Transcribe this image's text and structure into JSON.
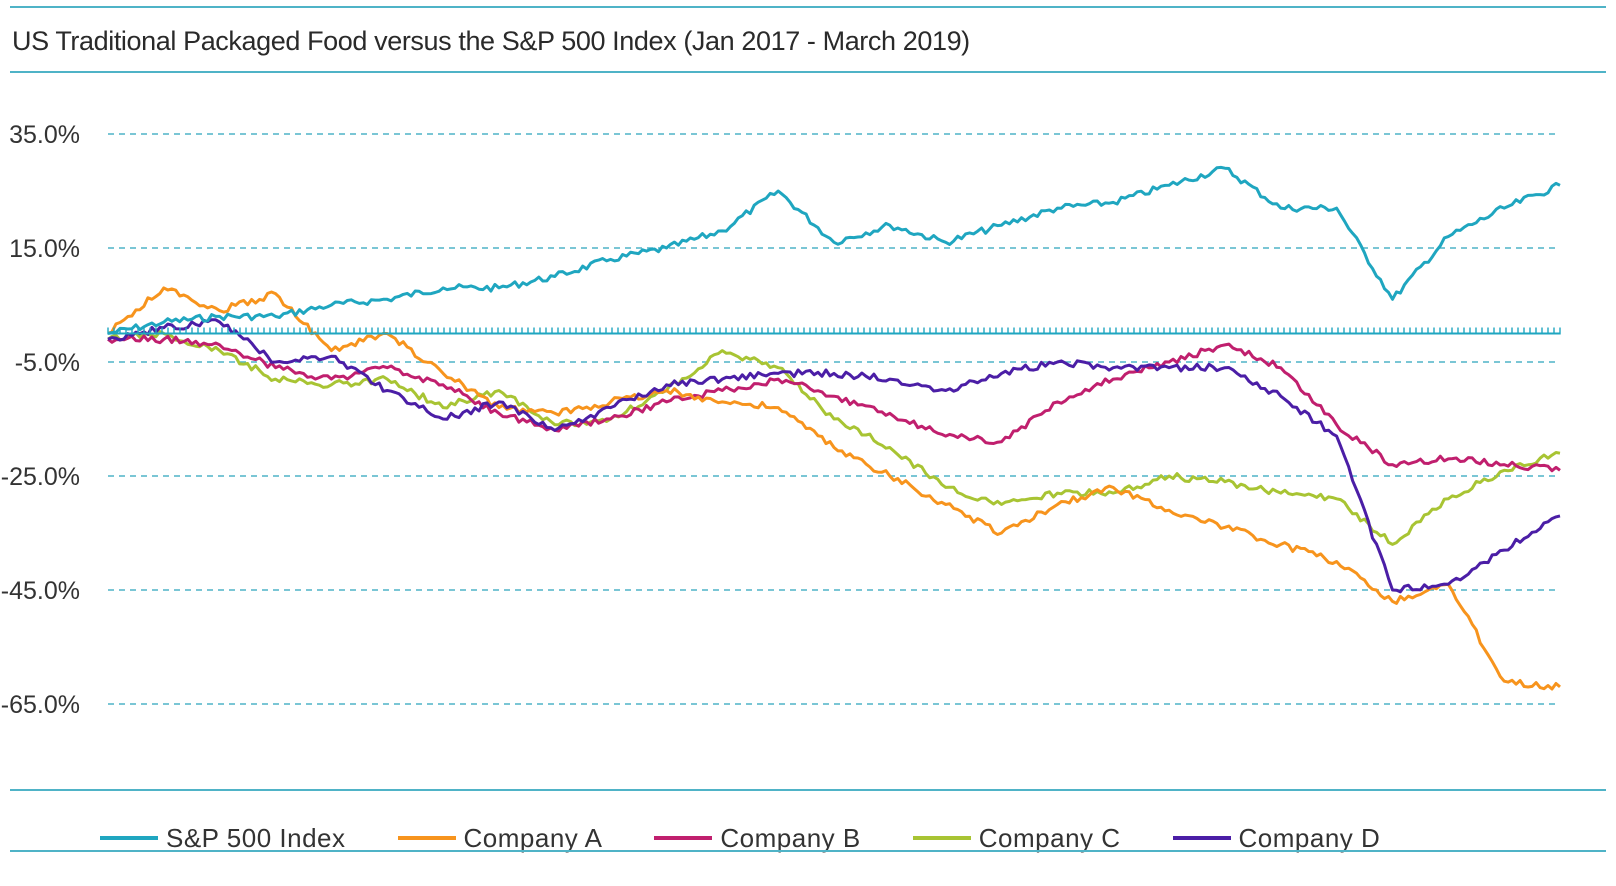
{
  "chart_data": {
    "type": "line",
    "title": "US Traditional Packaged Food versus the S&P 500 Index (Jan 2017 -  March 2019)",
    "xlabel": "",
    "ylabel": "",
    "x_range": [
      "2017-01",
      "2019-03"
    ],
    "ylim": [
      -70,
      40
    ],
    "yticks": [
      35,
      15,
      -5,
      -25,
      -45,
      -65
    ],
    "ytick_labels": [
      "35.0%",
      "15.0%",
      "-5.0%",
      "-25.0%",
      "-45.0%",
      "-65.0%"
    ],
    "grid": true,
    "legend_position": "bottom",
    "series": [
      {
        "name": "S&P 500 Index",
        "color": "#1fa6c0",
        "points": [
          [
            "2017-01",
            0
          ],
          [
            "2017-02",
            2
          ],
          [
            "2017-03",
            3
          ],
          [
            "2017-04",
            3
          ],
          [
            "2017-05",
            5
          ],
          [
            "2017-06",
            6
          ],
          [
            "2017-07",
            8
          ],
          [
            "2017-08",
            8
          ],
          [
            "2017-09",
            10
          ],
          [
            "2017-10",
            13
          ],
          [
            "2017-11",
            15
          ],
          [
            "2017-12",
            18
          ],
          [
            "2018-01",
            25
          ],
          [
            "2018-02",
            16
          ],
          [
            "2018-03",
            19
          ],
          [
            "2018-04",
            16
          ],
          [
            "2018-05",
            19
          ],
          [
            "2018-06",
            22
          ],
          [
            "2018-07",
            23
          ],
          [
            "2018-08",
            26
          ],
          [
            "2018-09",
            29
          ],
          [
            "2018-10",
            22
          ],
          [
            "2018-11",
            22
          ],
          [
            "2018-12",
            6
          ],
          [
            "2019-01",
            17
          ],
          [
            "2019-02",
            22
          ],
          [
            "2019-03",
            26
          ]
        ]
      },
      {
        "name": "Company A",
        "color": "#f7941d",
        "points": [
          [
            "2017-01",
            0
          ],
          [
            "2017-02",
            8
          ],
          [
            "2017-03",
            4
          ],
          [
            "2017-04",
            7
          ],
          [
            "2017-05",
            -3
          ],
          [
            "2017-06",
            0
          ],
          [
            "2017-07",
            -7
          ],
          [
            "2017-08",
            -13
          ],
          [
            "2017-09",
            -14
          ],
          [
            "2017-10",
            -12
          ],
          [
            "2017-11",
            -10
          ],
          [
            "2017-12",
            -12
          ],
          [
            "2018-01",
            -13
          ],
          [
            "2018-02",
            -20
          ],
          [
            "2018-03",
            -25
          ],
          [
            "2018-04",
            -30
          ],
          [
            "2018-05",
            -35
          ],
          [
            "2018-06",
            -30
          ],
          [
            "2018-07",
            -27
          ],
          [
            "2018-08",
            -31
          ],
          [
            "2018-09",
            -34
          ],
          [
            "2018-10",
            -37
          ],
          [
            "2018-11",
            -40
          ],
          [
            "2018-12",
            -47
          ],
          [
            "2019-01",
            -44
          ],
          [
            "2019-02",
            -61
          ],
          [
            "2019-03",
            -62
          ]
        ]
      },
      {
        "name": "Company B",
        "color": "#c01f6e",
        "points": [
          [
            "2017-01",
            -1
          ],
          [
            "2017-02",
            -1
          ],
          [
            "2017-03",
            -2
          ],
          [
            "2017-04",
            -6
          ],
          [
            "2017-05",
            -8
          ],
          [
            "2017-06",
            -6
          ],
          [
            "2017-07",
            -9
          ],
          [
            "2017-08",
            -14
          ],
          [
            "2017-09",
            -17
          ],
          [
            "2017-10",
            -15
          ],
          [
            "2017-11",
            -12
          ],
          [
            "2017-12",
            -10
          ],
          [
            "2018-01",
            -8
          ],
          [
            "2018-02",
            -11
          ],
          [
            "2018-03",
            -14
          ],
          [
            "2018-04",
            -18
          ],
          [
            "2018-05",
            -19
          ],
          [
            "2018-06",
            -12
          ],
          [
            "2018-07",
            -8
          ],
          [
            "2018-08",
            -5
          ],
          [
            "2018-09",
            -2
          ],
          [
            "2018-10",
            -6
          ],
          [
            "2018-11",
            -16
          ],
          [
            "2018-12",
            -23
          ],
          [
            "2019-01",
            -22
          ],
          [
            "2019-02",
            -23
          ],
          [
            "2019-03",
            -24
          ]
        ]
      },
      {
        "name": "Company C",
        "color": "#a8c433",
        "points": [
          [
            "2017-01",
            -1
          ],
          [
            "2017-02",
            0
          ],
          [
            "2017-03",
            -3
          ],
          [
            "2017-04",
            -8
          ],
          [
            "2017-05",
            -9
          ],
          [
            "2017-06",
            -8
          ],
          [
            "2017-07",
            -13
          ],
          [
            "2017-08",
            -10
          ],
          [
            "2017-09",
            -16
          ],
          [
            "2017-10",
            -15
          ],
          [
            "2017-11",
            -10
          ],
          [
            "2017-12",
            -3
          ],
          [
            "2018-01",
            -6
          ],
          [
            "2018-02",
            -15
          ],
          [
            "2018-03",
            -20
          ],
          [
            "2018-04",
            -27
          ],
          [
            "2018-05",
            -30
          ],
          [
            "2018-06",
            -28
          ],
          [
            "2018-07",
            -28
          ],
          [
            "2018-08",
            -25
          ],
          [
            "2018-09",
            -26
          ],
          [
            "2018-10",
            -28
          ],
          [
            "2018-11",
            -29
          ],
          [
            "2018-12",
            -37
          ],
          [
            "2019-01",
            -29
          ],
          [
            "2019-02",
            -24
          ],
          [
            "2019-03",
            -21
          ]
        ]
      },
      {
        "name": "Company D",
        "color": "#4b1ea6",
        "points": [
          [
            "2017-01",
            -1
          ],
          [
            "2017-02",
            1
          ],
          [
            "2017-03",
            2
          ],
          [
            "2017-04",
            -5
          ],
          [
            "2017-05",
            -4
          ],
          [
            "2017-06",
            -10
          ],
          [
            "2017-07",
            -15
          ],
          [
            "2017-08",
            -12
          ],
          [
            "2017-09",
            -17
          ],
          [
            "2017-10",
            -13
          ],
          [
            "2017-11",
            -9
          ],
          [
            "2017-12",
            -8
          ],
          [
            "2018-01",
            -7
          ],
          [
            "2018-02",
            -7
          ],
          [
            "2018-03",
            -8
          ],
          [
            "2018-04",
            -10
          ],
          [
            "2018-05",
            -7
          ],
          [
            "2018-06",
            -5
          ],
          [
            "2018-07",
            -6
          ],
          [
            "2018-08",
            -6
          ],
          [
            "2018-09",
            -6
          ],
          [
            "2018-10",
            -11
          ],
          [
            "2018-11",
            -18
          ],
          [
            "2018-12",
            -45
          ],
          [
            "2019-01",
            -44
          ],
          [
            "2019-02",
            -38
          ],
          [
            "2019-03",
            -32
          ]
        ]
      }
    ]
  }
}
